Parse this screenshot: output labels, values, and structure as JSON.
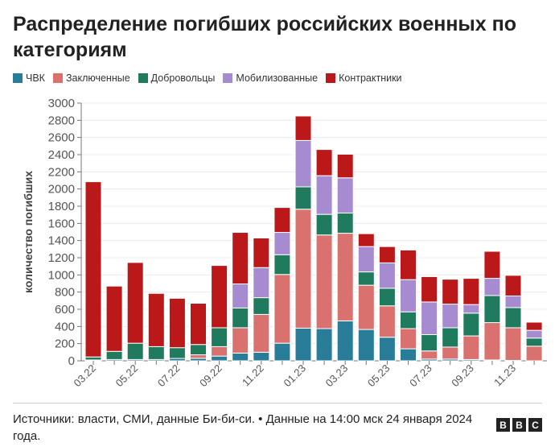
{
  "title": "Распределение погибших российских военных по категориям",
  "footer": "Источники: власти, СМИ, данные Би-би-си. • Данные на 14:00 мск 24 января 2024 года.",
  "logo": [
    "B",
    "B",
    "C"
  ],
  "chart_data": {
    "type": "bar",
    "stacked": true,
    "ylabel": "количество погибших",
    "xlabel": "",
    "ylim": [
      0,
      3000
    ],
    "yticks": [
      0,
      200,
      400,
      600,
      800,
      1000,
      1200,
      1400,
      1600,
      1800,
      2000,
      2200,
      2400,
      2600,
      2800,
      3000
    ],
    "grid": true,
    "legend_position": "top-left",
    "categories": [
      "03.22",
      "04.22",
      "05.22",
      "06.22",
      "07.22",
      "08.22",
      "09.22",
      "10.22",
      "11.22",
      "12.22",
      "01.23",
      "02.23",
      "03.23",
      "04.23",
      "05.23",
      "06.23",
      "07.23",
      "08.23",
      "09.23",
      "10.23",
      "11.23",
      "12.23"
    ],
    "xtick_labels": [
      "03.22",
      "05.22",
      "07.22",
      "09.22",
      "11.22",
      "01.23",
      "03.23",
      "05.23",
      "07.23",
      "09.23",
      "11.23"
    ],
    "series": [
      {
        "name": "ЧВК",
        "color": "#2a7d99",
        "values": [
          10,
          15,
          15,
          15,
          28,
          30,
          55,
          90,
          100,
          205,
          380,
          375,
          465,
          365,
          275,
          140,
          20,
          20,
          15,
          10,
          5,
          0
        ]
      },
      {
        "name": "Заключенные",
        "color": "#d9716f",
        "values": [
          0,
          0,
          0,
          0,
          0,
          40,
          110,
          295,
          440,
          800,
          1385,
          1090,
          1020,
          515,
          365,
          235,
          95,
          140,
          275,
          435,
          380,
          170
        ]
      },
      {
        "name": "Добровольцы",
        "color": "#1f7a5e",
        "values": [
          35,
          95,
          190,
          150,
          125,
          120,
          220,
          230,
          195,
          230,
          260,
          240,
          235,
          155,
          205,
          195,
          190,
          225,
          265,
          315,
          235,
          95
        ]
      },
      {
        "name": "Мобилизованные",
        "color": "#a68bd1",
        "values": [
          0,
          0,
          0,
          0,
          0,
          0,
          0,
          280,
          350,
          260,
          540,
          450,
          410,
          295,
          295,
          375,
          380,
          275,
          100,
          200,
          135,
          90
        ]
      },
      {
        "name": "Контрактники",
        "color": "#bb1919",
        "values": [
          2040,
          760,
          940,
          620,
          575,
          480,
          725,
          600,
          345,
          290,
          285,
          305,
          275,
          150,
          190,
          345,
          295,
          290,
          305,
          315,
          240,
          95
        ]
      }
    ]
  }
}
